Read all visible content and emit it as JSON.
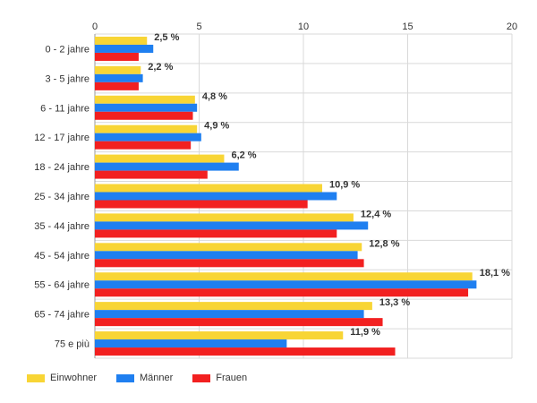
{
  "chart_data": {
    "type": "bar",
    "orientation": "horizontal",
    "categories": [
      "0 - 2 jahre",
      "3 - 5 jahre",
      "6 - 11 jahre",
      "12 - 17 jahre",
      "18 - 24 jahre",
      "25 - 34 jahre",
      "35 - 44 jahre",
      "45 - 54 jahre",
      "55 - 64 jahre",
      "65 - 74 jahre",
      "75 e più"
    ],
    "series": [
      {
        "name": "Einwohner",
        "color": "#f8d535",
        "values": [
          2.5,
          2.2,
          4.8,
          4.9,
          6.2,
          10.9,
          12.4,
          12.8,
          18.1,
          13.3,
          11.9
        ]
      },
      {
        "name": "Männer",
        "color": "#1f7ff0",
        "values": [
          2.8,
          2.3,
          4.9,
          5.1,
          6.9,
          11.6,
          13.1,
          12.6,
          18.3,
          12.9,
          9.2
        ]
      },
      {
        "name": "Frauen",
        "color": "#f22020",
        "values": [
          2.1,
          2.1,
          4.7,
          4.6,
          5.4,
          10.2,
          11.6,
          12.9,
          17.9,
          13.8,
          14.4
        ]
      }
    ],
    "data_labels": [
      "2,5 %",
      "2,2 %",
      "4,8 %",
      "4,9 %",
      "6,2 %",
      "10,9 %",
      "12,4 %",
      "12,8 %",
      "18,1 %",
      "13,3 %",
      "11,9 %"
    ],
    "xticks": [
      "0",
      "5",
      "10",
      "15",
      "20"
    ],
    "xlim": [
      0,
      20
    ],
    "grid": true,
    "legend_position": "bottom-left"
  }
}
